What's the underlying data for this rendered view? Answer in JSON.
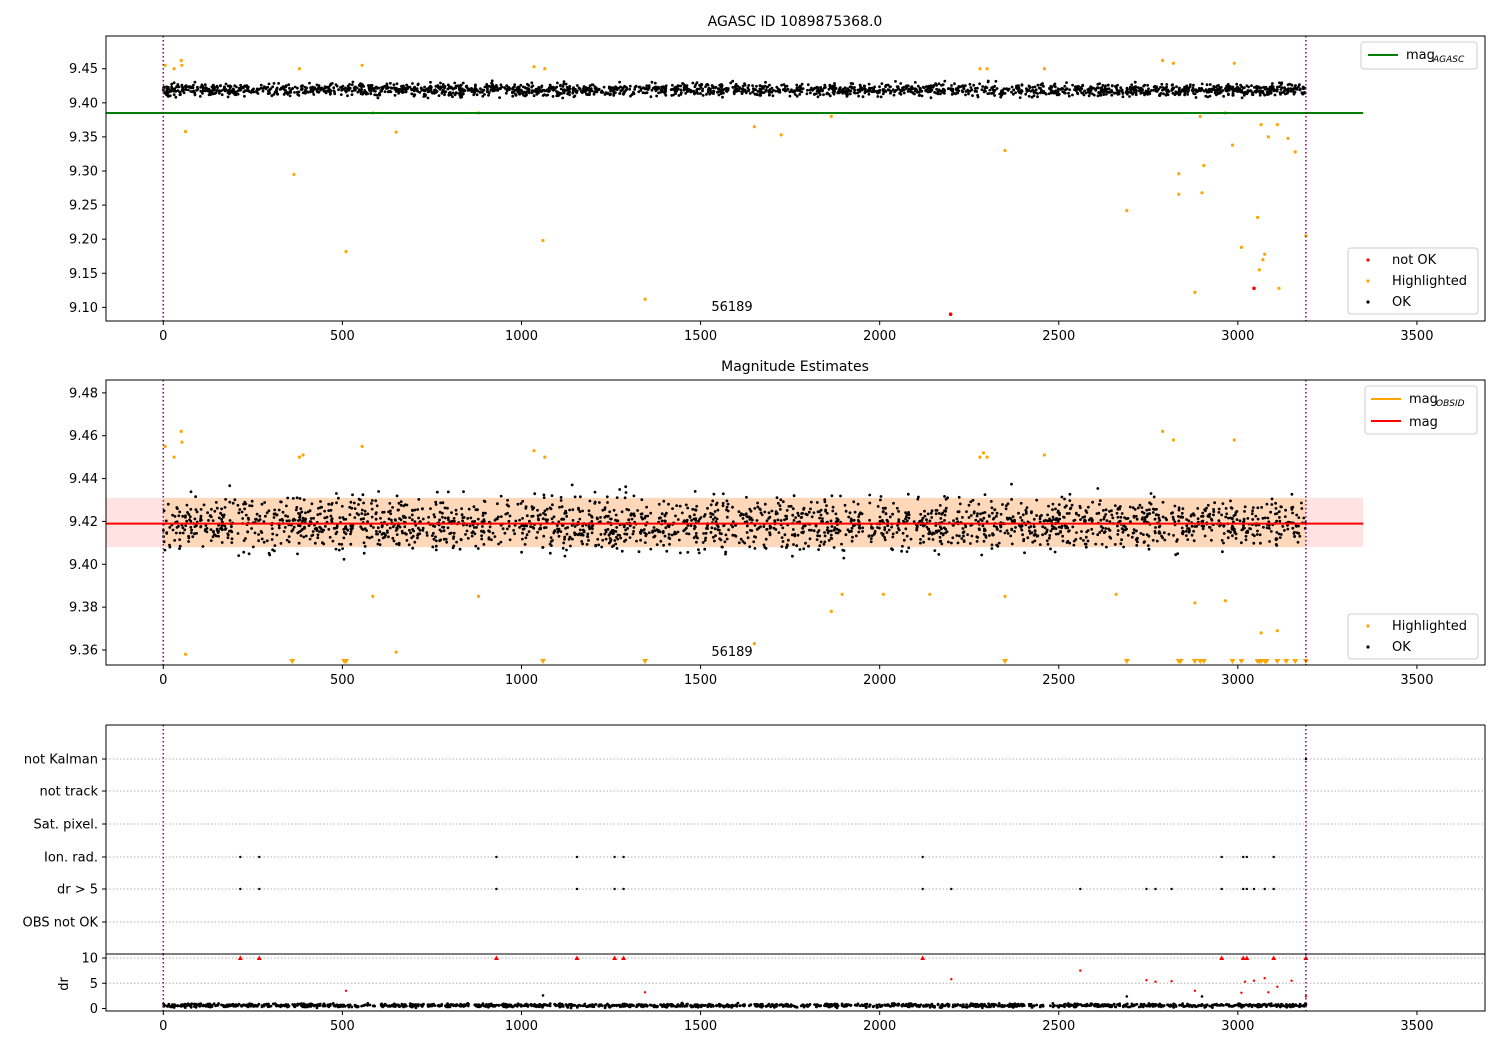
{
  "chart_data": [
    {
      "type": "scatter",
      "title": "AGASC ID 1089875368.0",
      "xlabel": "",
      "ylabel": "",
      "xlim": [
        -160,
        3690
      ],
      "ylim": [
        9.08,
        9.498
      ],
      "xticks": [
        0,
        500,
        1000,
        1500,
        2000,
        2500,
        3000,
        3500
      ],
      "xtick_labels": [
        "0",
        "500",
        "1000",
        "1500",
        "2000",
        "2500",
        "3000",
        "3500"
      ],
      "yticks": [
        9.1,
        9.15,
        9.2,
        9.25,
        9.3,
        9.35,
        9.4,
        9.45
      ],
      "ytick_labels": [
        "9.10",
        "9.15",
        "9.20",
        "9.25",
        "9.30",
        "9.35",
        "9.40",
        "9.45"
      ],
      "vlines": [
        0,
        3190
      ],
      "hline": {
        "y": 9.385,
        "x": [
          -160,
          3350
        ],
        "color": "#008000"
      },
      "annotation": {
        "text": "56189",
        "x": 1580,
        "y": 9.1
      },
      "colors": {
        "ok": "#000000",
        "highlighted": "#ffa500",
        "not_ok": "#ff0000",
        "vline": "#800080"
      },
      "ok_band": {
        "x_range": [
          0,
          3190
        ],
        "center": 9.419,
        "spread": 0.012
      },
      "highlighted": [
        [
          5,
          9.455
        ],
        [
          30,
          9.45
        ],
        [
          50,
          9.462
        ],
        [
          52,
          9.455
        ],
        [
          62,
          9.358
        ],
        [
          365,
          9.295
        ],
        [
          380,
          9.45
        ],
        [
          510,
          9.182
        ],
        [
          555,
          9.455
        ],
        [
          585,
          9.385
        ],
        [
          650,
          9.357
        ],
        [
          880,
          9.385
        ],
        [
          1035,
          9.453
        ],
        [
          1060,
          9.198
        ],
        [
          1065,
          9.45
        ],
        [
          1345,
          9.112
        ],
        [
          1650,
          9.365
        ],
        [
          1725,
          9.353
        ],
        [
          1865,
          9.38
        ],
        [
          2280,
          9.45
        ],
        [
          2300,
          9.45
        ],
        [
          2350,
          9.33
        ],
        [
          2460,
          9.45
        ],
        [
          2690,
          9.242
        ],
        [
          2790,
          9.462
        ],
        [
          2820,
          9.458
        ],
        [
          2835,
          9.296
        ],
        [
          2835,
          9.266
        ],
        [
          2880,
          9.122
        ],
        [
          2895,
          9.38
        ],
        [
          2900,
          9.268
        ],
        [
          2905,
          9.308
        ],
        [
          2965,
          9.385
        ],
        [
          2985,
          9.338
        ],
        [
          2990,
          9.458
        ],
        [
          3010,
          9.188
        ],
        [
          3055,
          9.232
        ],
        [
          3060,
          9.155
        ],
        [
          3065,
          9.368
        ],
        [
          3070,
          9.17
        ],
        [
          3075,
          9.178
        ],
        [
          3085,
          9.35
        ],
        [
          3110,
          9.368
        ],
        [
          3115,
          9.128
        ],
        [
          3140,
          9.348
        ],
        [
          3160,
          9.328
        ],
        [
          3190,
          9.205
        ]
      ],
      "not_ok": [
        [
          2198,
          9.09
        ],
        [
          3045,
          9.128
        ]
      ],
      "legends": [
        {
          "position": "upper right",
          "entries": [
            {
              "label": "mag",
              "subscript": "AGASC",
              "kind": "line",
              "color": "#008000"
            }
          ]
        },
        {
          "position": "lower right",
          "entries": [
            {
              "label": "not OK",
              "kind": "marker",
              "color": "#ff0000"
            },
            {
              "label": "Highlighted",
              "kind": "marker",
              "color": "#ffa500"
            },
            {
              "label": "OK",
              "kind": "marker",
              "color": "#000000"
            }
          ]
        }
      ]
    },
    {
      "type": "scatter",
      "title": "Magnitude Estimates",
      "xlabel": "",
      "ylabel": "",
      "xlim": [
        -160,
        3690
      ],
      "ylim": [
        9.353,
        9.486
      ],
      "xticks": [
        0,
        500,
        1000,
        1500,
        2000,
        2500,
        3000,
        3500
      ],
      "xtick_labels": [
        "0",
        "500",
        "1000",
        "1500",
        "2000",
        "2500",
        "3000",
        "3500"
      ],
      "yticks": [
        9.36,
        9.38,
        9.4,
        9.42,
        9.44,
        9.46,
        9.48
      ],
      "ytick_labels": [
        "9.36",
        "9.38",
        "9.40",
        "9.42",
        "9.44",
        "9.46",
        "9.48"
      ],
      "vlines": [
        0,
        3190
      ],
      "hline": {
        "y": 9.419,
        "x": [
          -160,
          3350
        ],
        "color": "#ff0000"
      },
      "band": {
        "y": [
          9.408,
          9.431
        ],
        "x": [
          -160,
          3350
        ],
        "color": "#ffc0c0"
      },
      "band_obsid": {
        "y": [
          9.408,
          9.431
        ],
        "x": [
          0,
          3190
        ],
        "color": "#ffa500"
      },
      "annotation": {
        "text": "56189",
        "x": 1580,
        "y": 9.358
      },
      "colors": {
        "ok": "#000000",
        "highlighted": "#ffa500",
        "vline": "#800080"
      },
      "ok_band": {
        "x_range": [
          0,
          3190
        ],
        "center": 9.419,
        "spread": 0.012
      },
      "highlighted": [
        [
          5,
          9.455
        ],
        [
          30,
          9.45
        ],
        [
          50,
          9.462
        ],
        [
          52,
          9.457
        ],
        [
          62,
          9.358
        ],
        [
          380,
          9.45
        ],
        [
          390,
          9.451
        ],
        [
          555,
          9.455
        ],
        [
          585,
          9.385
        ],
        [
          650,
          9.359
        ],
        [
          880,
          9.385
        ],
        [
          1035,
          9.453
        ],
        [
          1065,
          9.45
        ],
        [
          1650,
          9.363
        ],
        [
          1865,
          9.378
        ],
        [
          1895,
          9.386
        ],
        [
          2010,
          9.386
        ],
        [
          2140,
          9.386
        ],
        [
          2280,
          9.45
        ],
        [
          2290,
          9.452
        ],
        [
          2300,
          9.45
        ],
        [
          2350,
          9.385
        ],
        [
          2460,
          9.451
        ],
        [
          2660,
          9.386
        ],
        [
          2790,
          9.462
        ],
        [
          2820,
          9.458
        ],
        [
          2880,
          9.382
        ],
        [
          2965,
          9.383
        ],
        [
          2990,
          9.458
        ],
        [
          3065,
          9.368
        ],
        [
          3110,
          9.369
        ]
      ],
      "below_limit": [
        360,
        505,
        510,
        1060,
        1345,
        2350,
        2690,
        2835,
        2840,
        2880,
        2895,
        2905,
        2985,
        3010,
        3055,
        3060,
        3065,
        3075,
        3080,
        3110,
        3135,
        3160,
        3190
      ],
      "legends": [
        {
          "position": "upper right",
          "entries": [
            {
              "label": "mag",
              "subscript": "OBSID",
              "kind": "line",
              "color": "#ffa500"
            },
            {
              "label": "mag",
              "kind": "line",
              "color": "#ff0000"
            }
          ]
        },
        {
          "position": "lower right",
          "entries": [
            {
              "label": "Highlighted",
              "kind": "marker",
              "color": "#ffa500"
            },
            {
              "label": "OK",
              "kind": "marker",
              "color": "#000000"
            }
          ]
        }
      ]
    },
    {
      "type": "scatter",
      "title": "",
      "xlabel": "",
      "ylabel": "",
      "xlim": [
        -160,
        3690
      ],
      "vlines": [
        0,
        3190
      ],
      "categories": [
        "not Kalman",
        "not track",
        "Sat. pixel.",
        "Ion. rad.",
        "dr > 5",
        "OBS not OK"
      ],
      "flags": {
        "not Kalman": [
          3190
        ],
        "not track": [],
        "Sat. pixel.": [],
        "Ion. rad.": [
          215,
          268,
          930,
          1155,
          1260,
          1285,
          2120,
          2955,
          3015,
          3025,
          3100
        ],
        "dr > 5": [
          215,
          268,
          930,
          1155,
          1260,
          1285,
          2120,
          2200,
          2560,
          2745,
          2770,
          2815,
          2955,
          3015,
          3025,
          3045,
          3075,
          3100
        ],
        "OBS not OK": []
      },
      "colors": {
        "flag": "#000000",
        "vline": "#800080"
      }
    },
    {
      "type": "scatter",
      "title": "",
      "xlabel": "",
      "ylabel": "dr",
      "xlim": [
        -160,
        3690
      ],
      "ylim": [
        -0.5,
        10.8
      ],
      "xticks": [
        0,
        500,
        1000,
        1500,
        2000,
        2500,
        3000,
        3500
      ],
      "xtick_labels": [
        "0",
        "500",
        "1000",
        "1500",
        "2000",
        "2500",
        "3000",
        "3500"
      ],
      "yticks": [
        0,
        5,
        10
      ],
      "ytick_labels": [
        "0",
        "5",
        "10"
      ],
      "vlines": [
        0,
        3190
      ],
      "colors": {
        "ok": "#000000",
        "clipped": "#ff0000",
        "outlier": "#ff0000",
        "vline": "#800080"
      },
      "ok_band": {
        "x_range": [
          0,
          3190
        ],
        "center": 0.6,
        "spread": 0.35
      },
      "clipped": [
        215,
        268,
        930,
        1155,
        1260,
        1285,
        2120,
        2955,
        3015,
        3025,
        3100,
        3190
      ],
      "outliers": [
        [
          510,
          3.5
        ],
        [
          1345,
          3.2
        ],
        [
          2200,
          5.8
        ],
        [
          2560,
          7.5
        ],
        [
          2745,
          5.6
        ],
        [
          2770,
          5.3
        ],
        [
          2815,
          5.4
        ],
        [
          2880,
          3.5
        ],
        [
          3010,
          3.1
        ],
        [
          3020,
          5.3
        ],
        [
          3045,
          5.5
        ],
        [
          3075,
          6.0
        ],
        [
          3085,
          3.2
        ],
        [
          3110,
          4.3
        ],
        [
          3150,
          5.5
        ],
        [
          3190,
          2.4
        ]
      ],
      "black_outliers": [
        [
          1060,
          2.6
        ],
        [
          2690,
          2.4
        ],
        [
          2900,
          2.4
        ]
      ]
    }
  ]
}
